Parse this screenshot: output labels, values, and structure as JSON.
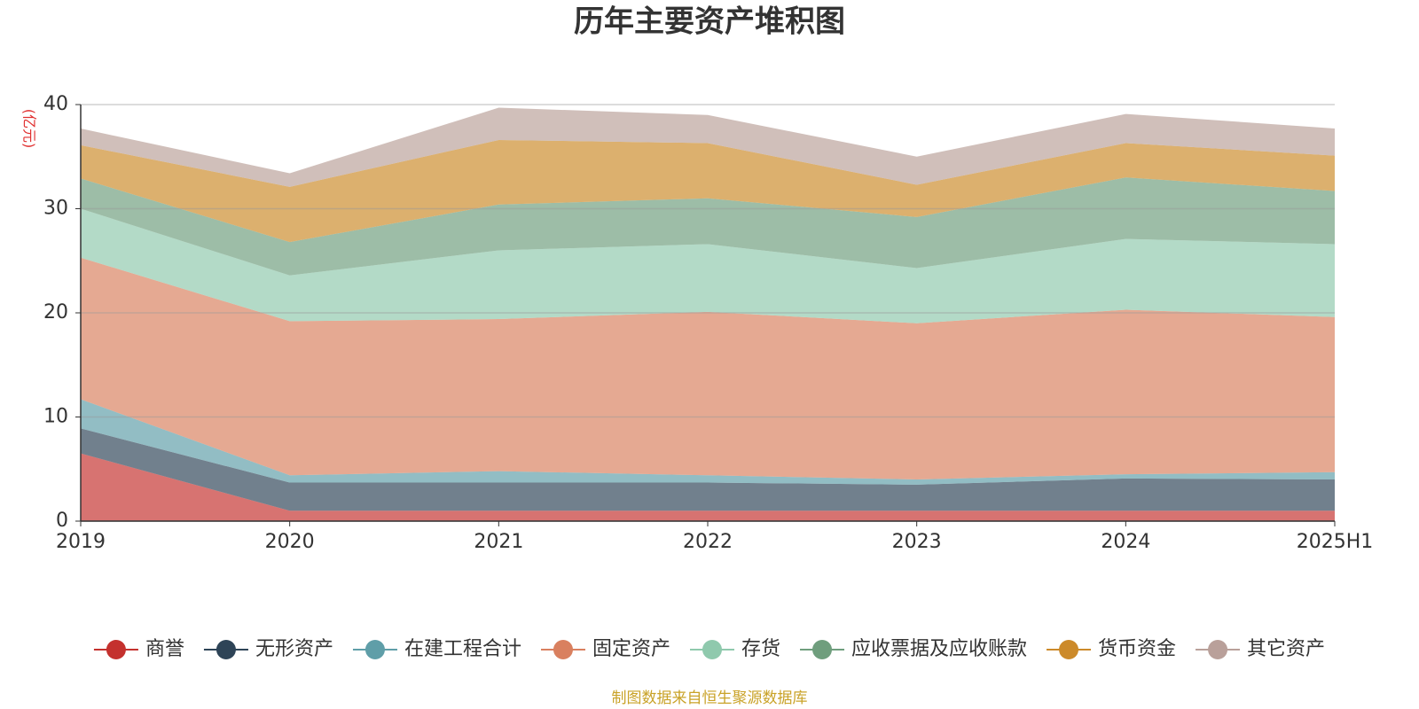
{
  "chart_data": {
    "type": "stacked_area",
    "title": "历年主要资产堆积图",
    "y_label": "(亿元)",
    "source": "制图数据来自恒生聚源数据库",
    "categories": [
      "2019",
      "2020",
      "2021",
      "2022",
      "2023",
      "2024",
      "2025H1"
    ],
    "ylim": [
      0,
      40
    ],
    "yticks": [
      0,
      10,
      20,
      30,
      40
    ],
    "grid": true,
    "legend": "bottom",
    "series": [
      {
        "name": "商誉",
        "color": "#c4312e",
        "values": [
          6.5,
          1.0,
          1.0,
          1.0,
          1.0,
          1.0,
          1.0
        ]
      },
      {
        "name": "无形资产",
        "color": "#2e4457",
        "values": [
          2.4,
          2.7,
          2.7,
          2.7,
          2.5,
          3.1,
          3.0
        ]
      },
      {
        "name": "在建工程合计",
        "color": "#5f9ea8",
        "values": [
          2.8,
          0.7,
          1.1,
          0.7,
          0.5,
          0.4,
          0.7
        ]
      },
      {
        "name": "固定资产",
        "color": "#d9805f",
        "values": [
          13.6,
          14.8,
          14.6,
          15.7,
          15.0,
          15.8,
          14.9
        ]
      },
      {
        "name": "存货",
        "color": "#8fc9ad",
        "values": [
          4.7,
          4.4,
          6.6,
          6.5,
          5.3,
          6.8,
          7.0
        ]
      },
      {
        "name": "应收票据及应收账款",
        "color": "#6f9e7d",
        "values": [
          2.9,
          3.2,
          4.4,
          4.4,
          4.9,
          5.9,
          5.1
        ]
      },
      {
        "name": "货币资金",
        "color": "#cc8a2a",
        "values": [
          3.2,
          5.3,
          6.2,
          5.3,
          3.1,
          3.3,
          3.4
        ]
      },
      {
        "name": "其它资产",
        "color": "#b9a09a",
        "values": [
          1.6,
          1.3,
          3.1,
          2.7,
          2.7,
          2.8,
          2.6
        ]
      }
    ]
  }
}
